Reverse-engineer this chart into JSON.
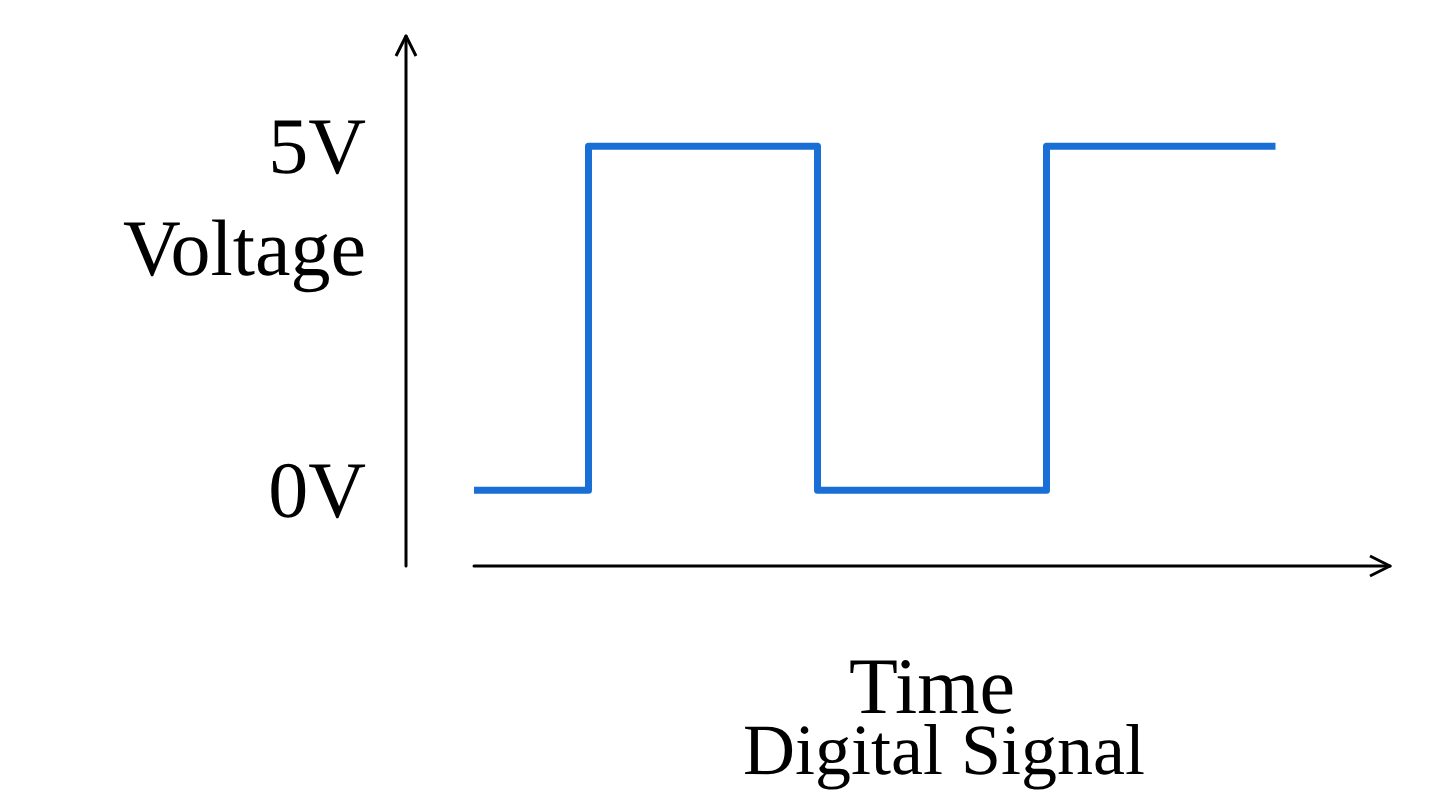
{
  "chart_data": {
    "type": "step",
    "title": "Digital Signal",
    "xlabel": "Time",
    "ylabel": "Voltage",
    "categories": [
      null,
      null,
      null,
      null,
      null,
      null,
      null,
      null
    ],
    "series": [
      {
        "color": "#1a6fd6",
        "values": [
          0,
          5,
          5,
          0,
          0,
          5,
          5,
          5
        ]
      }
    ],
    "ylim": [
      -1.1,
      6.6
    ],
    "yticks": [
      {
        "value": 0,
        "label": "0V"
      },
      {
        "value": 5,
        "label": "5V"
      }
    ],
    "grid": false,
    "marker": "none"
  }
}
